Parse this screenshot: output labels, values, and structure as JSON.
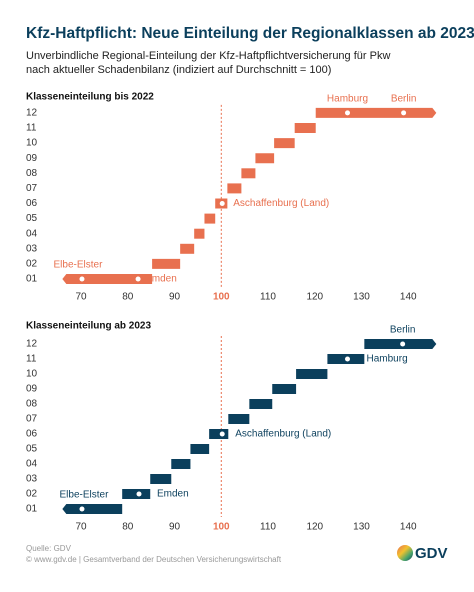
{
  "title": "Kfz-Haftpflicht: Neue Einteilung der Regionalklassen ab 2023",
  "subtitle": [
    "Unverbindliche Regional-Einteilung der Kfz-Haftpflichtversicherung für Pkw",
    "nach aktueller Schadenbilanz (indiziert auf Durchschnitt = 100)"
  ],
  "chart_data": [
    {
      "type": "range-bar",
      "title": "Klasseneinteilung bis 2022",
      "color": "#e8704f",
      "categories": [
        "01",
        "02",
        "03",
        "04",
        "05",
        "06",
        "07",
        "08",
        "09",
        "10",
        "11",
        "12"
      ],
      "values": [
        [
          66,
          85.2
        ],
        [
          85.2,
          91.2
        ],
        [
          91.2,
          94.2
        ],
        [
          94.2,
          96.4
        ],
        [
          96.4,
          98.7
        ],
        [
          98.7,
          101.3
        ],
        [
          101.3,
          104.3
        ],
        [
          104.3,
          107.3
        ],
        [
          107.3,
          111.3
        ],
        [
          111.3,
          115.7
        ],
        [
          115.7,
          120.2
        ],
        [
          120.2,
          146
        ]
      ],
      "xlim": [
        64,
        147
      ],
      "xticks": [
        70,
        80,
        90,
        100,
        110,
        120,
        130,
        140
      ],
      "reference_line": 100,
      "annotations": [
        {
          "label": "Elbe-Elster",
          "x": 70.2,
          "category": "01"
        },
        {
          "label": "Emden",
          "x": 82.2,
          "category": "01"
        },
        {
          "label": "Aschaffenburg (Land)",
          "x": 100.2,
          "category": "06"
        },
        {
          "label": "Hamburg",
          "x": 127,
          "category": "12"
        },
        {
          "label": "Berlin",
          "x": 139,
          "category": "12"
        }
      ]
    },
    {
      "type": "range-bar",
      "title": "Klasseneinteilung ab 2023",
      "color": "#0b3f5c",
      "categories": [
        "01",
        "02",
        "03",
        "04",
        "05",
        "06",
        "07",
        "08",
        "09",
        "10",
        "11",
        "12"
      ],
      "values": [
        [
          66,
          78.8
        ],
        [
          78.8,
          84.8
        ],
        [
          84.8,
          89.3
        ],
        [
          89.3,
          93.4
        ],
        [
          93.4,
          97.4
        ],
        [
          97.4,
          101.5
        ],
        [
          101.5,
          106
        ],
        [
          106,
          110.9
        ],
        [
          110.9,
          116
        ],
        [
          116,
          122.7
        ],
        [
          122.7,
          130.6
        ],
        [
          130.6,
          146
        ]
      ],
      "xlim": [
        64,
        147
      ],
      "xticks": [
        70,
        80,
        90,
        100,
        110,
        120,
        130,
        140
      ],
      "reference_line": 100,
      "annotations": [
        {
          "label": "Elbe-Elster",
          "x": 70.2,
          "category": "01"
        },
        {
          "label": "Emden",
          "x": 82.4,
          "category": "02"
        },
        {
          "label": "Aschaffenburg (Land)",
          "x": 100.2,
          "category": "06"
        },
        {
          "label": "Hamburg",
          "x": 127,
          "category": "11"
        },
        {
          "label": "Berlin",
          "x": 138.8,
          "category": "12"
        }
      ]
    }
  ],
  "source": "Quelle: GDV",
  "copyright": "© www.gdv.de  |  Gesamtverband der Deutschen Versicherungswirtschaft",
  "logo": "GDV"
}
